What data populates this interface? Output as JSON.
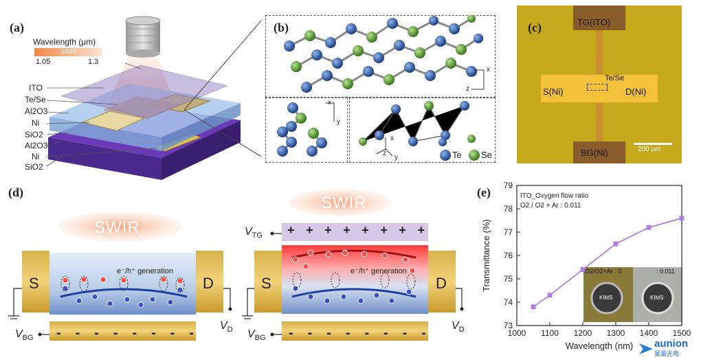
{
  "panel_a": {
    "label": "(a)",
    "wavelength_title": "Wavelength (μm)",
    "band_label": "SWIR",
    "range_min": "1.05",
    "range_max": "1.3",
    "layers": [
      "ITO",
      "Te/Se",
      "Al2O3",
      "Ni",
      "SiO2",
      "Al2O3",
      "Ni",
      "SiO2"
    ]
  },
  "panel_b": {
    "label": "(b)",
    "axis_x": "x",
    "axis_y": "y",
    "axis_z": "z",
    "legend_te": "Te",
    "legend_se": "Se"
  },
  "panel_c": {
    "label": "(c)",
    "tg": "TG(ITO)",
    "bg": "BG(Ni)",
    "source": "S(Ni)",
    "drain": "D(Ni)",
    "channel": "Te/Se",
    "scale": "200 μm"
  },
  "panel_d": {
    "label": "(d)",
    "swir": "SWIR",
    "s": "S",
    "d": "D",
    "generation": "e⁻/h⁺ generation",
    "vbg": "V",
    "vbg_sub": "BG",
    "vd": "V",
    "vd_sub": "D",
    "vtg": "V",
    "vtg_sub": "TG",
    "plus": "+",
    "minus": "-"
  },
  "panel_e": {
    "label": "(e)",
    "legend_line1": "ITO_Oxygen flow ratio",
    "legend_line2": "O2 / O2 + Ar : 0.011",
    "inset_left": "O2/O2+Ar : 0",
    "inset_right": ": 0.011",
    "inset_logo": "KIMS"
  },
  "watermark": {
    "text": "aunion",
    "sub": "昊量光电"
  },
  "colors": {
    "line": "#b07fe0",
    "gold": "#c9a13e",
    "purple": "#4a2a8c",
    "swir_glow": "#f6b48a",
    "te_atom": "#1f4fa0",
    "se_atom": "#4c9a2a"
  },
  "chart_data": {
    "type": "line",
    "title": "",
    "xlabel": "Wavelength (nm)",
    "ylabel": "Transmittance (%)",
    "xlim": [
      1000,
      1500
    ],
    "ylim": [
      73,
      79
    ],
    "xticks": [
      1000,
      1100,
      1200,
      1300,
      1400,
      1500
    ],
    "yticks": [
      73,
      74,
      75,
      76,
      77,
      78,
      79
    ],
    "grid": false,
    "series": [
      {
        "x": [
          1050,
          1100,
          1200,
          1300,
          1400,
          1500
        ],
        "y": [
          73.8,
          74.3,
          75.4,
          76.5,
          77.2,
          77.6
        ]
      }
    ]
  }
}
